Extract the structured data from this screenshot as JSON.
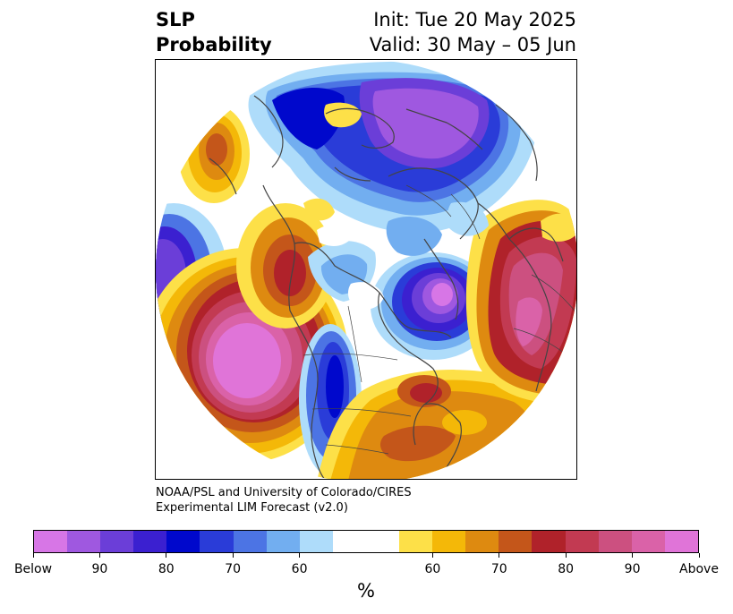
{
  "title": {
    "left_line1": "SLP",
    "left_line2": "Probability",
    "right_line1": "Init: Tue 20 May 2025",
    "right_line2": "Valid: 30 May – 05 Jun"
  },
  "credit": {
    "line1": "NOAA/PSL and University of Colorado/CIRES",
    "line2": "Experimental LIM Forecast (v2.0)"
  },
  "colorbar": {
    "colors": [
      "#d776e6",
      "#9f58e0",
      "#6b3ed8",
      "#3b20d0",
      "#0008cc",
      "#2a3cd8",
      "#4c74e4",
      "#72aef0",
      "#aedcfa",
      "#ffffff",
      "#ffffff",
      "#fde048",
      "#f4b808",
      "#de8a10",
      "#c4561a",
      "#b0222a",
      "#c23a52",
      "#cc5080",
      "#da62a8",
      "#e074d8"
    ],
    "tick_labels": [
      "Below",
      "90",
      "80",
      "70",
      "60",
      "60",
      "70",
      "80",
      "90",
      "Above"
    ],
    "unit": "%"
  },
  "map": {
    "projection": "north-polar-stereographic",
    "variable": "sea level pressure tercile probability",
    "regions": [
      {
        "area": "Arctic / North Atlantic high latitudes",
        "category": "below",
        "level": "80-90"
      },
      {
        "area": "Greenland / Baffin Bay",
        "category": "below",
        "level": "Below"
      },
      {
        "area": "North Pacific (south of Alaska)",
        "category": "above",
        "level": "Above"
      },
      {
        "area": "Western Europe / North Atlantic",
        "category": "above",
        "level": "80-90"
      },
      {
        "area": "Eastern North America",
        "category": "above",
        "level": "60-80"
      },
      {
        "area": "Western North America",
        "category": "below",
        "level": "70-80"
      }
    ]
  }
}
